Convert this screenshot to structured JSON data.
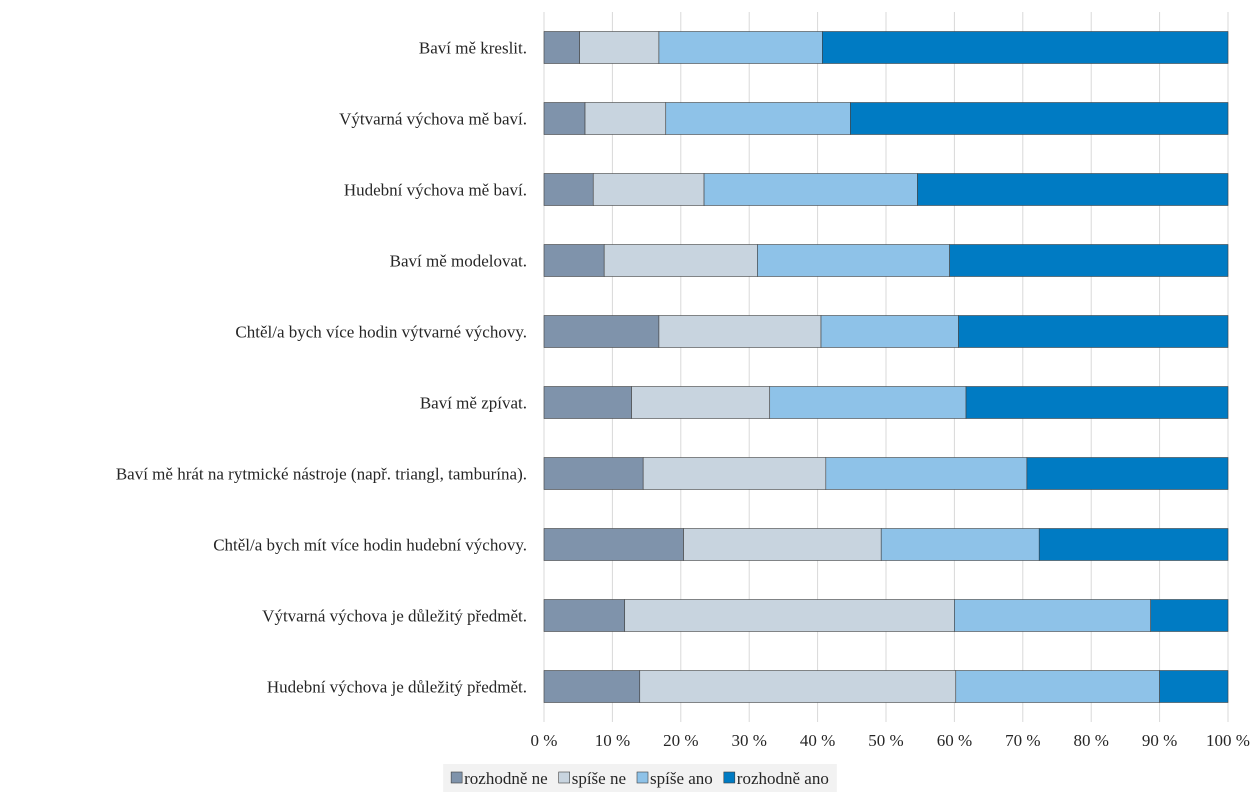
{
  "chart_data": {
    "type": "bar",
    "orientation": "horizontal",
    "stacked": "percent",
    "categories": [
      "Baví mě kreslit.",
      "Výtvarná výchova mě baví.",
      "Hudební výchova mě baví.",
      "Baví mě modelovat.",
      "Chtěl/a bych více hodin výtvarné výchovy.",
      "Baví mě zpívat.",
      "Baví mě hrát na rytmické nástroje (např. triangl, tamburína).",
      "Chtěl/a bych mít více hodin hudební výchovy.",
      "Výtvarná výchova je důležitý předmět.",
      "Hudební výchova je důležitý předmět."
    ],
    "series": [
      {
        "name": "rozhodně ne",
        "color": "#7f93ab",
        "values": [
          5.2,
          6.0,
          7.2,
          8.8,
          16.8,
          12.8,
          14.5,
          20.4,
          11.8,
          14.0
        ]
      },
      {
        "name": "spíše ne",
        "color": "#c8d4df",
        "values": [
          11.6,
          11.8,
          16.2,
          22.4,
          23.7,
          20.2,
          26.7,
          28.9,
          48.2,
          46.2
        ]
      },
      {
        "name": "spíše ano",
        "color": "#8ec2e8",
        "values": [
          23.9,
          27.0,
          31.2,
          28.1,
          20.1,
          28.7,
          29.4,
          23.1,
          28.7,
          29.8
        ]
      },
      {
        "name": "rozhodně ano",
        "color": "#007bc3",
        "values": [
          59.3,
          55.2,
          45.4,
          40.7,
          39.4,
          38.3,
          29.4,
          27.6,
          11.3,
          10.0
        ]
      }
    ],
    "xlim": [
      0,
      100
    ],
    "xticks": [
      "0 %",
      "10 %",
      "20 %",
      "30 %",
      "40 %",
      "50 %",
      "60 %",
      "70 %",
      "80 %",
      "90 %",
      "100 %"
    ],
    "grid": true,
    "legend_position": "bottom"
  }
}
